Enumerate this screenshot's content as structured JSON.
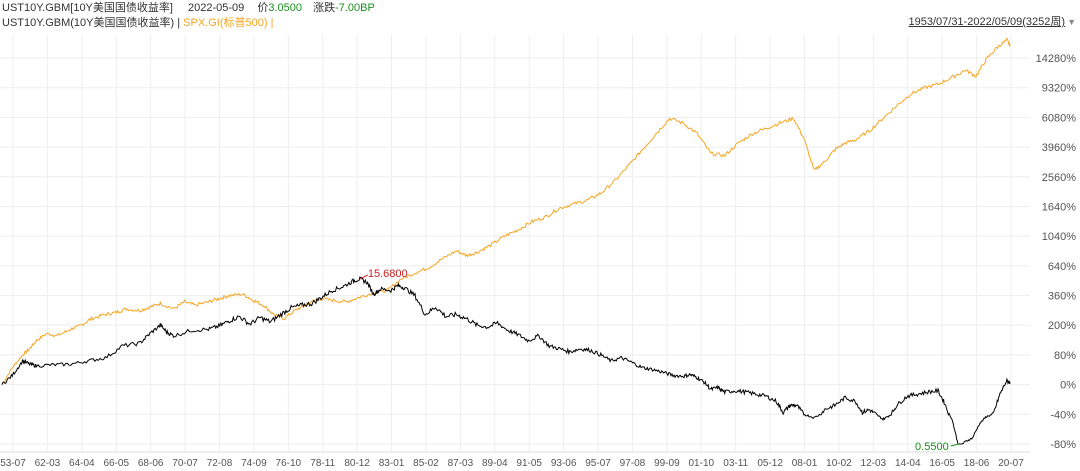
{
  "header": {
    "instrument": "UST10Y.GBM[10Y美国国债收益率]",
    "date": "2022-05-09",
    "price_label": "价",
    "price_value": "3.0500",
    "change_label": "涨跌",
    "change_value": "-7.00BP",
    "legend_series1": "UST10Y.GBM(10Y美国国债收益率)",
    "legend_sep": "|",
    "legend_series2": "SPX.GI(标普500)",
    "legend_sep2": "|",
    "range": "1953/07/31-2022/05/09(3252周)",
    "range_dropdown_icon": "triangle-down-icon"
  },
  "colors": {
    "series1": "#000000",
    "series2": "#f5a623",
    "grid": "#eeeeee",
    "max_annot": "#cc2222",
    "min_annot": "#1a8f1a"
  },
  "chart_data": {
    "type": "line",
    "y_scale": "log (percent change from start)",
    "y_ticks": [
      "14280%",
      "9320%",
      "6080%",
      "3960%",
      "2560%",
      "1640%",
      "1040%",
      "640%",
      "360%",
      "200%",
      "80%",
      "0%",
      "-40%",
      "-80%"
    ],
    "x_ticks": [
      "53-07",
      "62-03",
      "64-04",
      "66-05",
      "68-06",
      "70-07",
      "72-08",
      "74-09",
      "76-10",
      "78-11",
      "80-12",
      "83-01",
      "85-02",
      "87-03",
      "89-04",
      "91-05",
      "93-06",
      "95-07",
      "97-08",
      "99-09",
      "01-10",
      "03-11",
      "05-12",
      "08-01",
      "10-02",
      "12-03",
      "14-04",
      "16-05",
      "18-06",
      "20-07"
    ],
    "annotations": {
      "max": "15.6800",
      "min": "0.5500"
    },
    "series": [
      {
        "name": "UST10Y.GBM(10Y美国国债收益率)",
        "points": [
          [
            0,
            0
          ],
          [
            0.3,
            20
          ],
          [
            0.6,
            60
          ],
          [
            0.8,
            50
          ],
          [
            1,
            45
          ],
          [
            1.5,
            48
          ],
          [
            2,
            50
          ],
          [
            2.5,
            60
          ],
          [
            3,
            70
          ],
          [
            3.5,
            110
          ],
          [
            4,
            120
          ],
          [
            4.3,
            160
          ],
          [
            4.6,
            200
          ],
          [
            4.8,
            165
          ],
          [
            5,
            150
          ],
          [
            5.5,
            175
          ],
          [
            6,
            180
          ],
          [
            6.3,
            195
          ],
          [
            6.6,
            220
          ],
          [
            6.9,
            240
          ],
          [
            7.2,
            205
          ],
          [
            7.5,
            235
          ],
          [
            7.8,
            215
          ],
          [
            8.1,
            250
          ],
          [
            8.4,
            285
          ],
          [
            8.7,
            300
          ],
          [
            9,
            310
          ],
          [
            9.3,
            350
          ],
          [
            9.6,
            400
          ],
          [
            9.9,
            430
          ],
          [
            10.2,
            480
          ],
          [
            10.4,
            500
          ],
          [
            10.6,
            470
          ],
          [
            10.8,
            370
          ],
          [
            11,
            410
          ],
          [
            11.3,
            400
          ],
          [
            11.5,
            440
          ],
          [
            11.7,
            420
          ],
          [
            12,
            360
          ],
          [
            12.3,
            250
          ],
          [
            12.6,
            290
          ],
          [
            12.9,
            240
          ],
          [
            13.2,
            250
          ],
          [
            13.5,
            230
          ],
          [
            13.8,
            200
          ],
          [
            14.1,
            190
          ],
          [
            14.4,
            210
          ],
          [
            14.7,
            175
          ],
          [
            15,
            155
          ],
          [
            15.3,
            130
          ],
          [
            15.6,
            150
          ],
          [
            15.9,
            110
          ],
          [
            16.2,
            100
          ],
          [
            16.5,
            90
          ],
          [
            16.8,
            100
          ],
          [
            17.1,
            95
          ],
          [
            17.4,
            80
          ],
          [
            17.7,
            60
          ],
          [
            18,
            70
          ],
          [
            18.3,
            55
          ],
          [
            18.6,
            40
          ],
          [
            18.9,
            35
          ],
          [
            19.2,
            28
          ],
          [
            19.5,
            20
          ],
          [
            19.8,
            18
          ],
          [
            20,
            22
          ],
          [
            20.2,
            15
          ],
          [
            20.4,
            5
          ],
          [
            20.6,
            -8
          ],
          [
            20.8,
            -5
          ],
          [
            21,
            -12
          ],
          [
            21.3,
            -10
          ],
          [
            21.6,
            -12
          ],
          [
            21.9,
            -15
          ],
          [
            22.2,
            -18
          ],
          [
            22.5,
            -25
          ],
          [
            22.7,
            -38
          ],
          [
            22.9,
            -30
          ],
          [
            23.1,
            -30
          ],
          [
            23.3,
            -40
          ],
          [
            23.6,
            -47
          ],
          [
            23.9,
            -35
          ],
          [
            24.2,
            -30
          ],
          [
            24.5,
            -20
          ],
          [
            24.8,
            -25
          ],
          [
            25,
            -38
          ],
          [
            25.2,
            -35
          ],
          [
            25.4,
            -40
          ],
          [
            25.6,
            -50
          ],
          [
            25.8,
            -42
          ],
          [
            26,
            -30
          ],
          [
            26.3,
            -18
          ],
          [
            26.6,
            -15
          ],
          [
            26.9,
            -12
          ],
          [
            27.2,
            -10
          ],
          [
            27.4,
            -28
          ],
          [
            27.6,
            -48
          ],
          [
            27.8,
            -82
          ],
          [
            28,
            -78
          ],
          [
            28.2,
            -75
          ],
          [
            28.4,
            -58
          ],
          [
            28.6,
            -45
          ],
          [
            28.8,
            -40
          ],
          [
            29,
            -15
          ],
          [
            29.2,
            8
          ],
          [
            29.3,
            3
          ]
        ]
      },
      {
        "name": "SPX.GI(标普500)",
        "points": [
          [
            0,
            0
          ],
          [
            0.3,
            40
          ],
          [
            0.6,
            80
          ],
          [
            0.8,
            100
          ],
          [
            1,
            130
          ],
          [
            1.3,
            160
          ],
          [
            1.6,
            150
          ],
          [
            2,
            180
          ],
          [
            2.3,
            200
          ],
          [
            2.6,
            230
          ],
          [
            3,
            250
          ],
          [
            3.3,
            260
          ],
          [
            3.6,
            280
          ],
          [
            4,
            270
          ],
          [
            4.3,
            290
          ],
          [
            4.6,
            310
          ],
          [
            5,
            280
          ],
          [
            5.3,
            320
          ],
          [
            5.6,
            300
          ],
          [
            6,
            320
          ],
          [
            6.3,
            340
          ],
          [
            6.6,
            360
          ],
          [
            7,
            370
          ],
          [
            7.3,
            330
          ],
          [
            7.6,
            300
          ],
          [
            7.9,
            250
          ],
          [
            8.2,
            230
          ],
          [
            8.5,
            270
          ],
          [
            8.8,
            300
          ],
          [
            9.2,
            340
          ],
          [
            9.6,
            330
          ],
          [
            10,
            320
          ],
          [
            10.4,
            350
          ],
          [
            10.8,
            380
          ],
          [
            11.2,
            400
          ],
          [
            11.6,
            500
          ],
          [
            12,
            560
          ],
          [
            12.4,
            620
          ],
          [
            12.8,
            720
          ],
          [
            13.2,
            820
          ],
          [
            13.5,
            760
          ],
          [
            13.8,
            800
          ],
          [
            14.2,
            900
          ],
          [
            14.6,
            1040
          ],
          [
            15,
            1150
          ],
          [
            15.4,
            1300
          ],
          [
            15.8,
            1400
          ],
          [
            16.2,
            1600
          ],
          [
            16.6,
            1700
          ],
          [
            17,
            1800
          ],
          [
            17.4,
            2000
          ],
          [
            17.8,
            2400
          ],
          [
            18.2,
            3000
          ],
          [
            18.6,
            3800
          ],
          [
            19,
            4800
          ],
          [
            19.4,
            6000
          ],
          [
            19.8,
            5600
          ],
          [
            20.2,
            4800
          ],
          [
            20.6,
            3600
          ],
          [
            21,
            3500
          ],
          [
            21.4,
            4200
          ],
          [
            21.8,
            4800
          ],
          [
            22.2,
            5200
          ],
          [
            22.6,
            5600
          ],
          [
            23,
            6000
          ],
          [
            23.3,
            4500
          ],
          [
            23.6,
            2800
          ],
          [
            23.9,
            3200
          ],
          [
            24.2,
            3800
          ],
          [
            24.5,
            4200
          ],
          [
            24.8,
            4400
          ],
          [
            25.2,
            5000
          ],
          [
            25.6,
            6000
          ],
          [
            26,
            7200
          ],
          [
            26.4,
            8500
          ],
          [
            26.8,
            9300
          ],
          [
            27.2,
            9800
          ],
          [
            27.6,
            10800
          ],
          [
            28,
            12000
          ],
          [
            28.3,
            11000
          ],
          [
            28.6,
            14000
          ],
          [
            28.9,
            16500
          ],
          [
            29.2,
            18500
          ],
          [
            29.3,
            17000
          ]
        ]
      }
    ]
  }
}
